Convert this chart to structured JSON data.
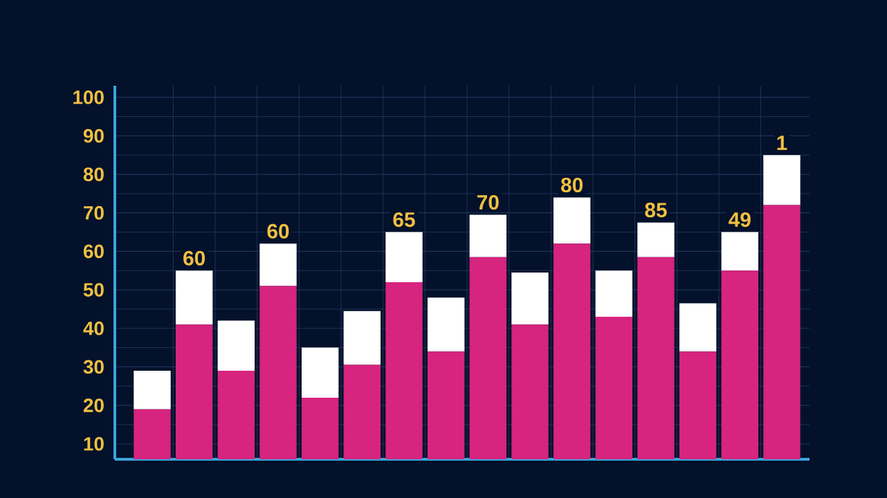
{
  "chart_data": {
    "type": "bar",
    "stacked": true,
    "categories": [
      null,
      null,
      null,
      null,
      null,
      null,
      null,
      null,
      null,
      null,
      null,
      null,
      null,
      null,
      null,
      null
    ],
    "series": [
      {
        "color": "#d6247f",
        "values": [
          19,
          41,
          29,
          51,
          22,
          30.5,
          52,
          34,
          58.5,
          41,
          62,
          43,
          58.5,
          34,
          55,
          72
        ]
      },
      {
        "color": "#ffffff",
        "values": [
          10,
          14,
          13,
          11,
          13,
          14,
          13,
          14,
          11,
          13.5,
          12,
          12,
          9,
          12.5,
          10,
          13
        ]
      }
    ],
    "annotations": [
      {
        "text": "60",
        "y": 55
      },
      {
        "text": "60",
        "y": 62
      },
      {
        "text": "65",
        "y": 65
      },
      {
        "text": "70",
        "y": 69.5
      },
      {
        "text": "80",
        "y": 74
      },
      {
        "text": "85",
        "y": 67.5
      },
      {
        "text": "49",
        "y": 65
      },
      {
        "text": "1",
        "y": 85
      }
    ],
    "ylim": [
      6,
      103
    ],
    "yticks": [
      10,
      20,
      30,
      40,
      50,
      60,
      70,
      80,
      90,
      100
    ],
    "grid": true
  }
}
